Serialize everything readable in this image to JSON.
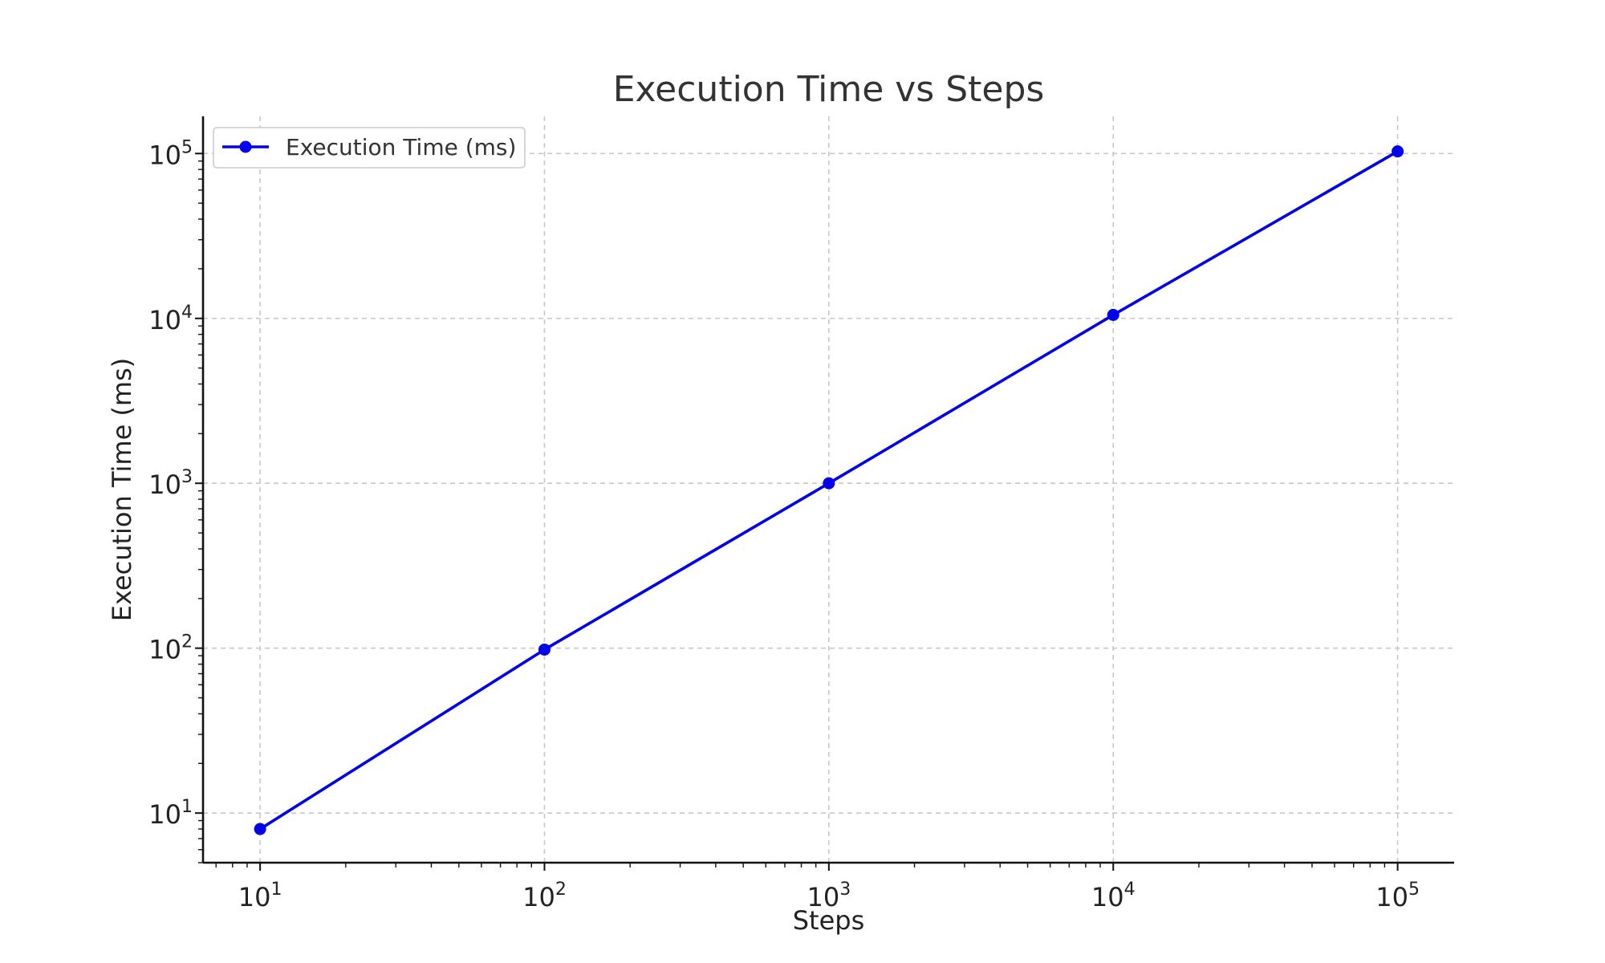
{
  "chart_data": {
    "type": "line",
    "title": "Execution Time vs Steps",
    "xlabel": "Steps",
    "ylabel": "Execution Time (ms)",
    "x_scale": "log",
    "y_scale": "log",
    "xlim": [
      6.3,
      158000
    ],
    "ylim": [
      5,
      168000
    ],
    "x_ticks": [
      {
        "base": "10",
        "exp": "1",
        "value": 10
      },
      {
        "base": "10",
        "exp": "2",
        "value": 100
      },
      {
        "base": "10",
        "exp": "3",
        "value": 1000
      },
      {
        "base": "10",
        "exp": "4",
        "value": 10000
      },
      {
        "base": "10",
        "exp": "5",
        "value": 100000
      }
    ],
    "y_ticks": [
      {
        "base": "10",
        "exp": "1",
        "value": 10
      },
      {
        "base": "10",
        "exp": "2",
        "value": 100
      },
      {
        "base": "10",
        "exp": "3",
        "value": 1000
      },
      {
        "base": "10",
        "exp": "4",
        "value": 10000
      },
      {
        "base": "10",
        "exp": "5",
        "value": 100000
      }
    ],
    "grid": true,
    "legend_position": "top-left",
    "series": [
      {
        "name": "Execution Time (ms)",
        "color": "#0000ee",
        "marker": "circle",
        "x": [
          10,
          100,
          1000,
          10000,
          100000
        ],
        "y": [
          8,
          98,
          1000,
          10500,
          103000
        ]
      }
    ]
  }
}
